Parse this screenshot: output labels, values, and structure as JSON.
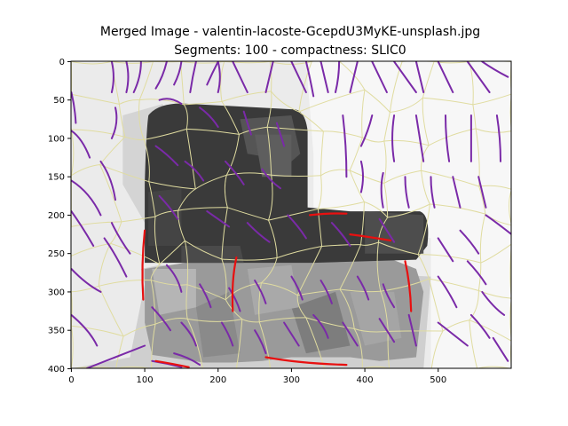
{
  "chart_data": {
    "type": "image",
    "title_lines": [
      "Merged Image - valentin-lacoste-GcepdU3MyKE-unsplash.jpg",
      "Segments: 100 - compactness: SLIC0"
    ],
    "x_ticks": [
      0,
      100,
      200,
      300,
      400,
      500
    ],
    "y_ticks": [
      0,
      50,
      100,
      150,
      200,
      250,
      300,
      350,
      400
    ],
    "xlim": [
      -0.5,
      599.5
    ],
    "ylim": [
      399.5,
      -0.5
    ],
    "grid": false,
    "image_width": 600,
    "image_height": 400,
    "colors": {
      "light_background": "#ebebeb",
      "bright_region": "#f7f7f7",
      "dark_region": "#3a3a3a",
      "mid_region": "#9a9a9a",
      "floor_region": "#cfcfcf",
      "boundary": "#e0dca0",
      "purple_curve": "#7a2aa8",
      "red_curve": "#e81010"
    }
  }
}
